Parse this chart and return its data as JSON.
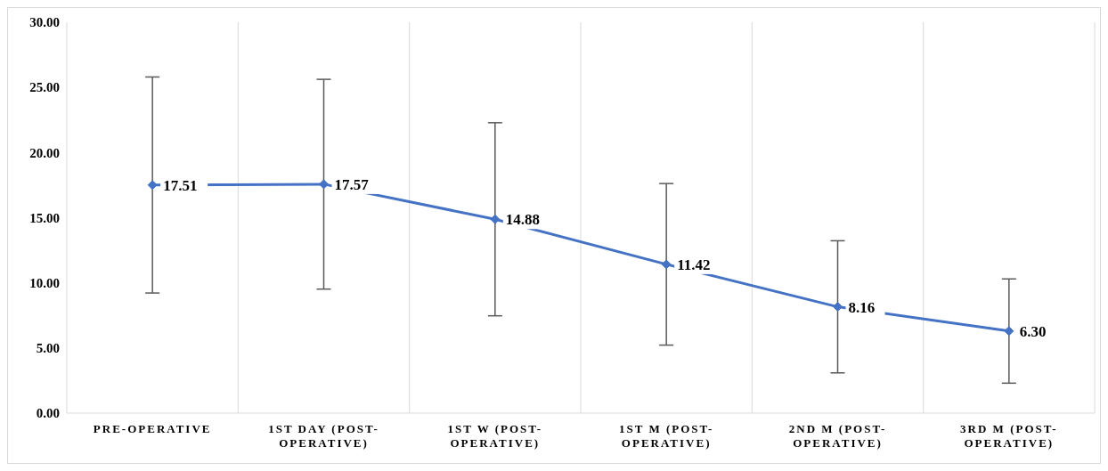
{
  "chart_data": {
    "type": "line",
    "categories": [
      "PRE-OPERATIVE",
      "1ST DAY (POST-OPERATIVE)",
      "1ST W (POST-OPERATIVE)",
      "1ST M (POST-OPERATIVE)",
      "2ND M (POST-OPERATIVE)",
      "3RD M (POST-OPERATIVE)"
    ],
    "series": [
      {
        "color": "#4472c4",
        "values": [
          17.51,
          17.57,
          14.88,
          11.42,
          8.16,
          6.3
        ],
        "errors": [
          8.29,
          8.05,
          7.41,
          6.2,
          5.07,
          4.0
        ],
        "value_labels": [
          "17.51",
          "17.57",
          "14.88",
          "11.42",
          "8.16",
          "6.30"
        ]
      }
    ],
    "ylim": [
      0,
      30
    ],
    "yticks": [
      {
        "value": 0,
        "label": "0.00"
      },
      {
        "value": 5,
        "label": "5.00"
      },
      {
        "value": 10,
        "label": "10.00"
      },
      {
        "value": 15,
        "label": "15.00"
      },
      {
        "value": 20,
        "label": "20.00"
      },
      {
        "value": 25,
        "label": "25.00"
      },
      {
        "value": 30,
        "label": "30.00"
      }
    ],
    "grid": "x",
    "legend": false,
    "marker": "diamond",
    "line_style": "solid"
  }
}
